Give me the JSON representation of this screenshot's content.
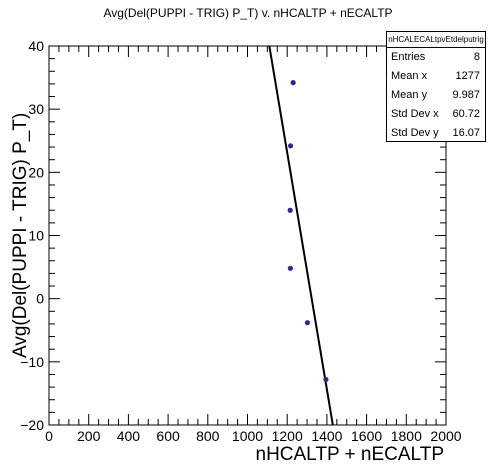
{
  "chart_data": {
    "type": "scatter",
    "title": "Avg(Del(PUPPI - TRIG) P_T) v. nHCALTP + nECALTP",
    "xlabel": "nHCALTP + nECALTP",
    "ylabel": "Avg(Del(PUPPI - TRIG) P_T)",
    "xlim": [
      0,
      2000
    ],
    "ylim": [
      -20,
      40
    ],
    "x_ticks": [
      "0",
      "200",
      "400",
      "600",
      "800",
      "1000",
      "1200",
      "1400",
      "1600",
      "1800",
      "2000"
    ],
    "y_ticks": [
      "−20",
      "−10",
      "0",
      "10",
      "20",
      "30",
      "40"
    ],
    "x_tick_values": [
      0,
      200,
      400,
      600,
      800,
      1000,
      1200,
      1400,
      1600,
      1800,
      2000
    ],
    "y_tick_values": [
      -20,
      -10,
      0,
      10,
      20,
      30,
      40
    ],
    "points": [
      {
        "x": 1230,
        "y": 34.2
      },
      {
        "x": 1217,
        "y": 24.2
      },
      {
        "x": 1215,
        "y": 14.0
      },
      {
        "x": 1216,
        "y": 4.8
      },
      {
        "x": 1302,
        "y": -3.8
      },
      {
        "x": 1395,
        "y": -12.8
      }
    ],
    "fit_line": {
      "x1": 1110,
      "y1": 40,
      "x2": 1430,
      "y2": -20
    },
    "marker_color": "#2b2b8c",
    "grid": false,
    "legend": "top-right"
  },
  "stats_box": {
    "name": "nHCALECALtpvEtdelputrig",
    "rows": [
      {
        "label": "Entries",
        "value": "8"
      },
      {
        "label": "Mean x",
        "value": "1277"
      },
      {
        "label": "Mean y",
        "value": "9.987"
      },
      {
        "label": "Std Dev x",
        "value": "60.72"
      },
      {
        "label": "Std Dev y",
        "value": "16.07"
      }
    ]
  }
}
